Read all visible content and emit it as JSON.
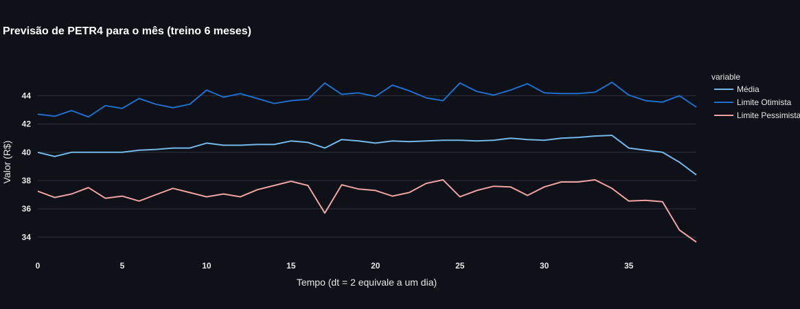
{
  "chart_data": {
    "type": "line",
    "title": "Previsão de PETR4 para o mês (treino 6 meses)",
    "xlabel": "Tempo (dt = 2 equivale a um dia)",
    "ylabel": "Valor (R$)",
    "xlim": [
      0,
      39
    ],
    "ylim": [
      32.8,
      46.4
    ],
    "x_ticks": [
      0,
      5,
      10,
      15,
      20,
      25,
      30,
      35
    ],
    "y_ticks": [
      34,
      36,
      38,
      40,
      42,
      44
    ],
    "grid": true,
    "legend_title": "variable",
    "legend_position": "right",
    "x": [
      0,
      1,
      2,
      3,
      4,
      5,
      6,
      7,
      8,
      9,
      10,
      11,
      12,
      13,
      14,
      15,
      16,
      17,
      18,
      19,
      20,
      21,
      22,
      23,
      24,
      25,
      26,
      27,
      28,
      29,
      30,
      31,
      32,
      33,
      34,
      35,
      36,
      37,
      38,
      39
    ],
    "series": [
      {
        "name": "Média",
        "color": "#74b9ec",
        "values": [
          40.0,
          39.7,
          40.0,
          40.0,
          40.0,
          40.0,
          40.15,
          40.2,
          40.3,
          40.3,
          40.65,
          40.5,
          40.5,
          40.55,
          40.55,
          40.8,
          40.7,
          40.3,
          40.9,
          40.8,
          40.65,
          40.8,
          40.75,
          40.8,
          40.85,
          40.85,
          40.8,
          40.85,
          41.0,
          40.9,
          40.85,
          41.0,
          41.05,
          41.15,
          41.2,
          40.3,
          40.15,
          40.0,
          39.3,
          38.4
        ]
      },
      {
        "name": "Limite Otimista",
        "color": "#1e6fcf",
        "values": [
          42.7,
          42.55,
          42.95,
          42.5,
          43.3,
          43.1,
          43.8,
          43.4,
          43.15,
          43.4,
          44.4,
          43.9,
          44.15,
          43.8,
          43.45,
          43.65,
          43.75,
          44.9,
          44.1,
          44.2,
          43.95,
          44.75,
          44.35,
          43.85,
          43.65,
          44.9,
          44.3,
          44.05,
          44.4,
          44.85,
          44.2,
          44.15,
          44.15,
          44.25,
          44.95,
          44.05,
          43.65,
          43.55,
          44.0,
          43.2
        ]
      },
      {
        "name": "Limite Pessimista",
        "color": "#f2a3a3",
        "values": [
          37.25,
          36.8,
          37.05,
          37.5,
          36.75,
          36.9,
          36.55,
          37.0,
          37.45,
          37.15,
          36.85,
          37.05,
          36.85,
          37.35,
          37.65,
          37.95,
          37.65,
          35.7,
          37.7,
          37.4,
          37.3,
          36.9,
          37.15,
          37.8,
          38.05,
          36.85,
          37.3,
          37.6,
          37.55,
          36.95,
          37.55,
          37.9,
          37.9,
          38.05,
          37.45,
          36.55,
          36.6,
          36.5,
          34.5,
          33.65
        ]
      }
    ]
  }
}
